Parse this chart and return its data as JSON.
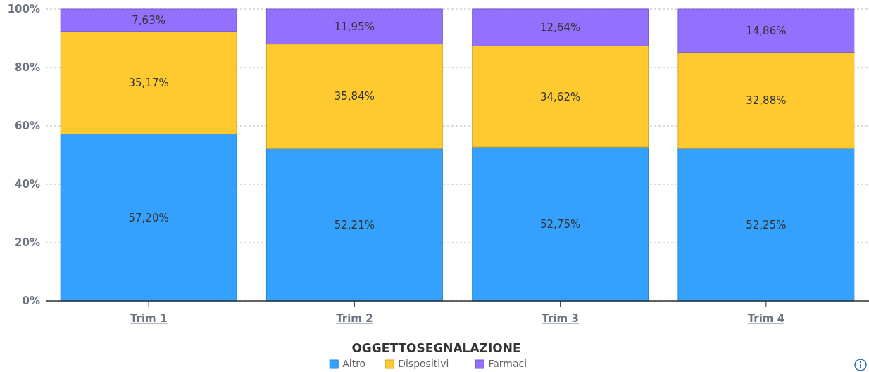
{
  "chart_data": {
    "type": "bar",
    "stacked": true,
    "categories": [
      "Trim 1",
      "Trim 2",
      "Trim 3",
      "Trim 4"
    ],
    "series": [
      {
        "name": "Altro",
        "color": "#33a1fd",
        "values": [
          57.2,
          52.21,
          52.75,
          52.25
        ],
        "value_labels": [
          "57,20%",
          "52,21%",
          "52,75%",
          "52,25%"
        ]
      },
      {
        "name": "Dispositivi",
        "color": "#ffca30",
        "values": [
          35.17,
          35.84,
          34.62,
          32.88
        ],
        "value_labels": [
          "35,17%",
          "35,84%",
          "34,62%",
          "32,88%"
        ]
      },
      {
        "name": "Farmaci",
        "color": "#9470ff",
        "values": [
          7.63,
          11.95,
          12.64,
          14.86
        ],
        "value_labels": [
          "7,63%",
          "11,95%",
          "12,64%",
          "14,86%"
        ]
      }
    ],
    "ylim": [
      0,
      100
    ],
    "yticks": [
      {
        "value": 0,
        "label": "0%"
      },
      {
        "value": 20,
        "label": "20%"
      },
      {
        "value": 40,
        "label": "40%"
      },
      {
        "value": 60,
        "label": "60%"
      },
      {
        "value": 80,
        "label": "80%"
      },
      {
        "value": 100,
        "label": "100%"
      }
    ],
    "grid": "y",
    "legend": "bottom",
    "legend_title": "OGGETTOSEGNALAZIONE"
  }
}
